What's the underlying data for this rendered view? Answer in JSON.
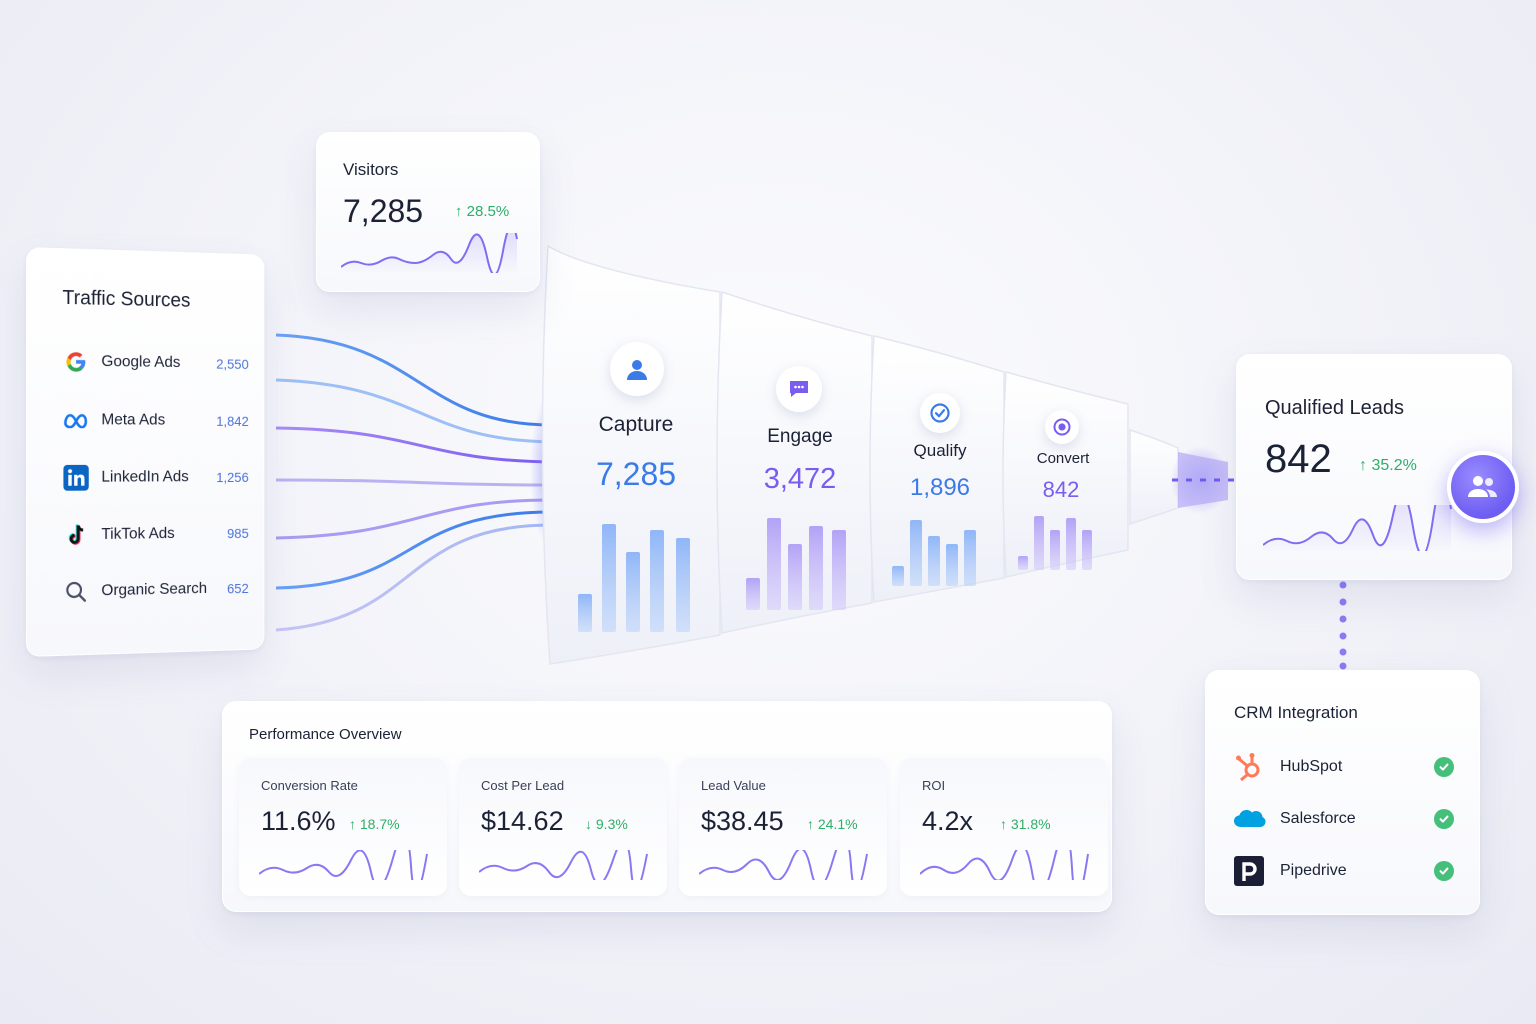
{
  "traffic_sources": {
    "title": "Traffic Sources",
    "items": [
      {
        "name": "Google Ads",
        "value": "2,550",
        "icon": "google-icon"
      },
      {
        "name": "Meta Ads",
        "value": "1,842",
        "icon": "meta-icon"
      },
      {
        "name": "LinkedIn Ads",
        "value": "1,256",
        "icon": "linkedin-icon"
      },
      {
        "name": "TikTok Ads",
        "value": "985",
        "icon": "tiktok-icon"
      },
      {
        "name": "Organic Search",
        "value": "652",
        "icon": "search-icon"
      }
    ]
  },
  "visitors": {
    "label": "Visitors",
    "value": "7,285",
    "change": "↑ 28.5%"
  },
  "funnel": {
    "stages": [
      {
        "name": "Capture",
        "value": "7,285",
        "icon": "user-icon",
        "color": "#3b7be8"
      },
      {
        "name": "Engage",
        "value": "3,472",
        "icon": "chat-icon",
        "color": "#7a5cf0"
      },
      {
        "name": "Qualify",
        "value": "1,896",
        "icon": "check-circle-icon",
        "color": "#3b7be8"
      },
      {
        "name": "Convert",
        "value": "842",
        "icon": "target-icon",
        "color": "#7a5cf0"
      }
    ]
  },
  "qualified_leads": {
    "label": "Qualified Leads",
    "value": "842",
    "change": "↑ 35.2%",
    "icon": "users-icon"
  },
  "crm": {
    "title": "CRM Integration",
    "items": [
      {
        "name": "HubSpot",
        "icon": "hubspot-icon",
        "status": "connected"
      },
      {
        "name": "Salesforce",
        "icon": "salesforce-icon",
        "status": "connected"
      },
      {
        "name": "Pipedrive",
        "icon": "pipedrive-icon",
        "status": "connected"
      }
    ]
  },
  "performance": {
    "title": "Performance Overview",
    "metrics": [
      {
        "label": "Conversion Rate",
        "value": "11.6%",
        "change": "↑ 18.7%"
      },
      {
        "label": "Cost Per Lead",
        "value": "$14.62",
        "change": "↓ 9.3%"
      },
      {
        "label": "Lead Value",
        "value": "$38.45",
        "change": "↑ 24.1%"
      },
      {
        "label": "ROI",
        "value": "4.2x",
        "change": "↑ 31.8%"
      }
    ]
  },
  "colors": {
    "accent_blue": "#3b7be8",
    "accent_purple": "#7a5cf0",
    "positive": "#2fae66"
  }
}
